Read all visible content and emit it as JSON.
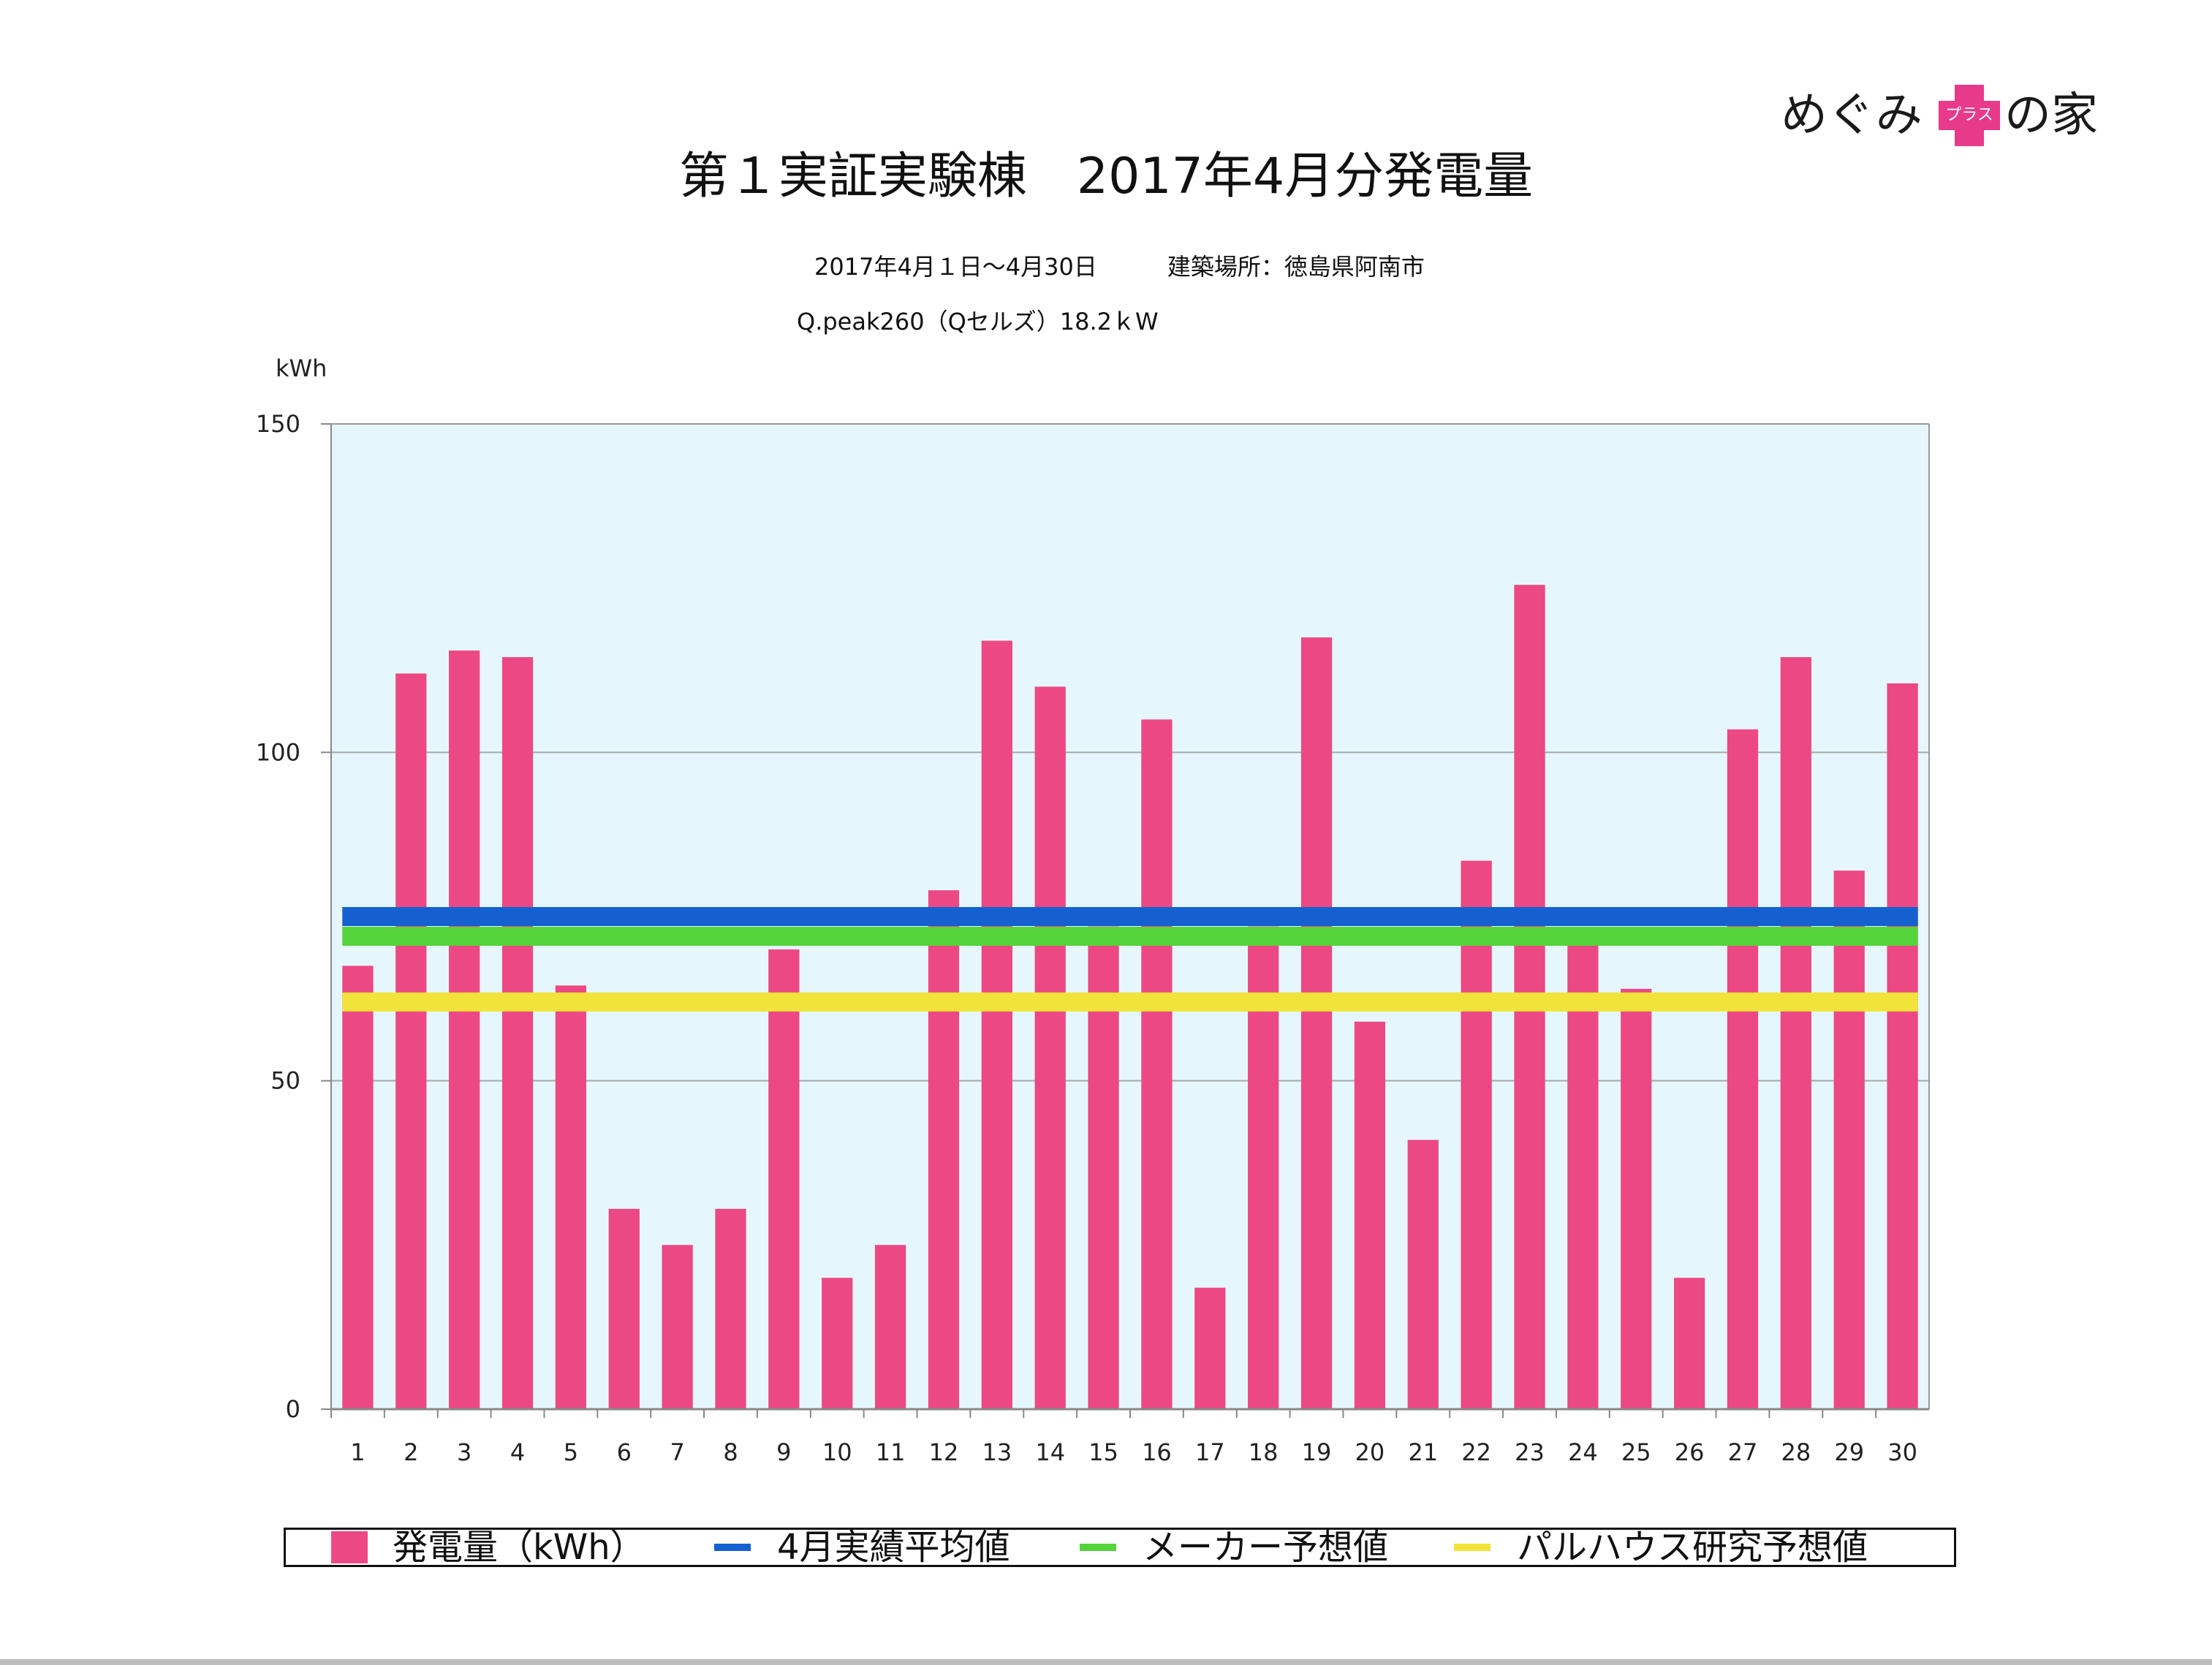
{
  "logo": {
    "text_left": "めぐみ",
    "text_right": "の家",
    "cross_text": "プラス"
  },
  "header": {
    "title": "第１実証実験棟　2017年4月分発電量",
    "subtitle_period": "2017年4月１日〜4月30日　　　建築場所：徳島県阿南市",
    "subtitle_panel": "Q.peak260（Qセルズ）18.2ｋW"
  },
  "colors": {
    "bar": "#ec4984",
    "avg_line": "#1560d0",
    "maker_line": "#55d33a",
    "palhaus_line": "#f2e33a",
    "plot_bg": "#e5f7fc",
    "grid": "#a8a8a8"
  },
  "chart_data": {
    "type": "bar",
    "title": "第１実証実験棟　2017年4月分発電量",
    "ylabel": "kWh",
    "xlabel": "",
    "ylim": [
      0,
      150
    ],
    "yticks": [
      0,
      50,
      100,
      150
    ],
    "grid": true,
    "legend_position": "bottom",
    "categories": [
      "1",
      "2",
      "3",
      "4",
      "5",
      "6",
      "7",
      "8",
      "9",
      "10",
      "11",
      "12",
      "13",
      "14",
      "15",
      "16",
      "17",
      "18",
      "19",
      "20",
      "21",
      "22",
      "23",
      "24",
      "25",
      "26",
      "27",
      "28",
      "29",
      "30"
    ],
    "series": [
      {
        "name": "発電量（kWh）",
        "kind": "bar",
        "values": [
          67.5,
          112,
          115.5,
          114.5,
          64.5,
          30.5,
          25,
          30.5,
          70,
          20,
          25,
          79,
          117,
          110,
          73.5,
          105,
          18.5,
          73.5,
          117.5,
          59,
          41,
          83.5,
          125.5,
          72.5,
          64,
          20,
          103.5,
          114.5,
          82,
          110.5
        ]
      }
    ],
    "reference_lines": [
      {
        "name": "4月実績平均値",
        "value": 75,
        "color": "#1560d0"
      },
      {
        "name": "メーカー予想値",
        "value": 72,
        "color": "#55d33a"
      },
      {
        "name": "パルハウス研究予想値",
        "value": 62,
        "color": "#f2e33a"
      }
    ]
  }
}
